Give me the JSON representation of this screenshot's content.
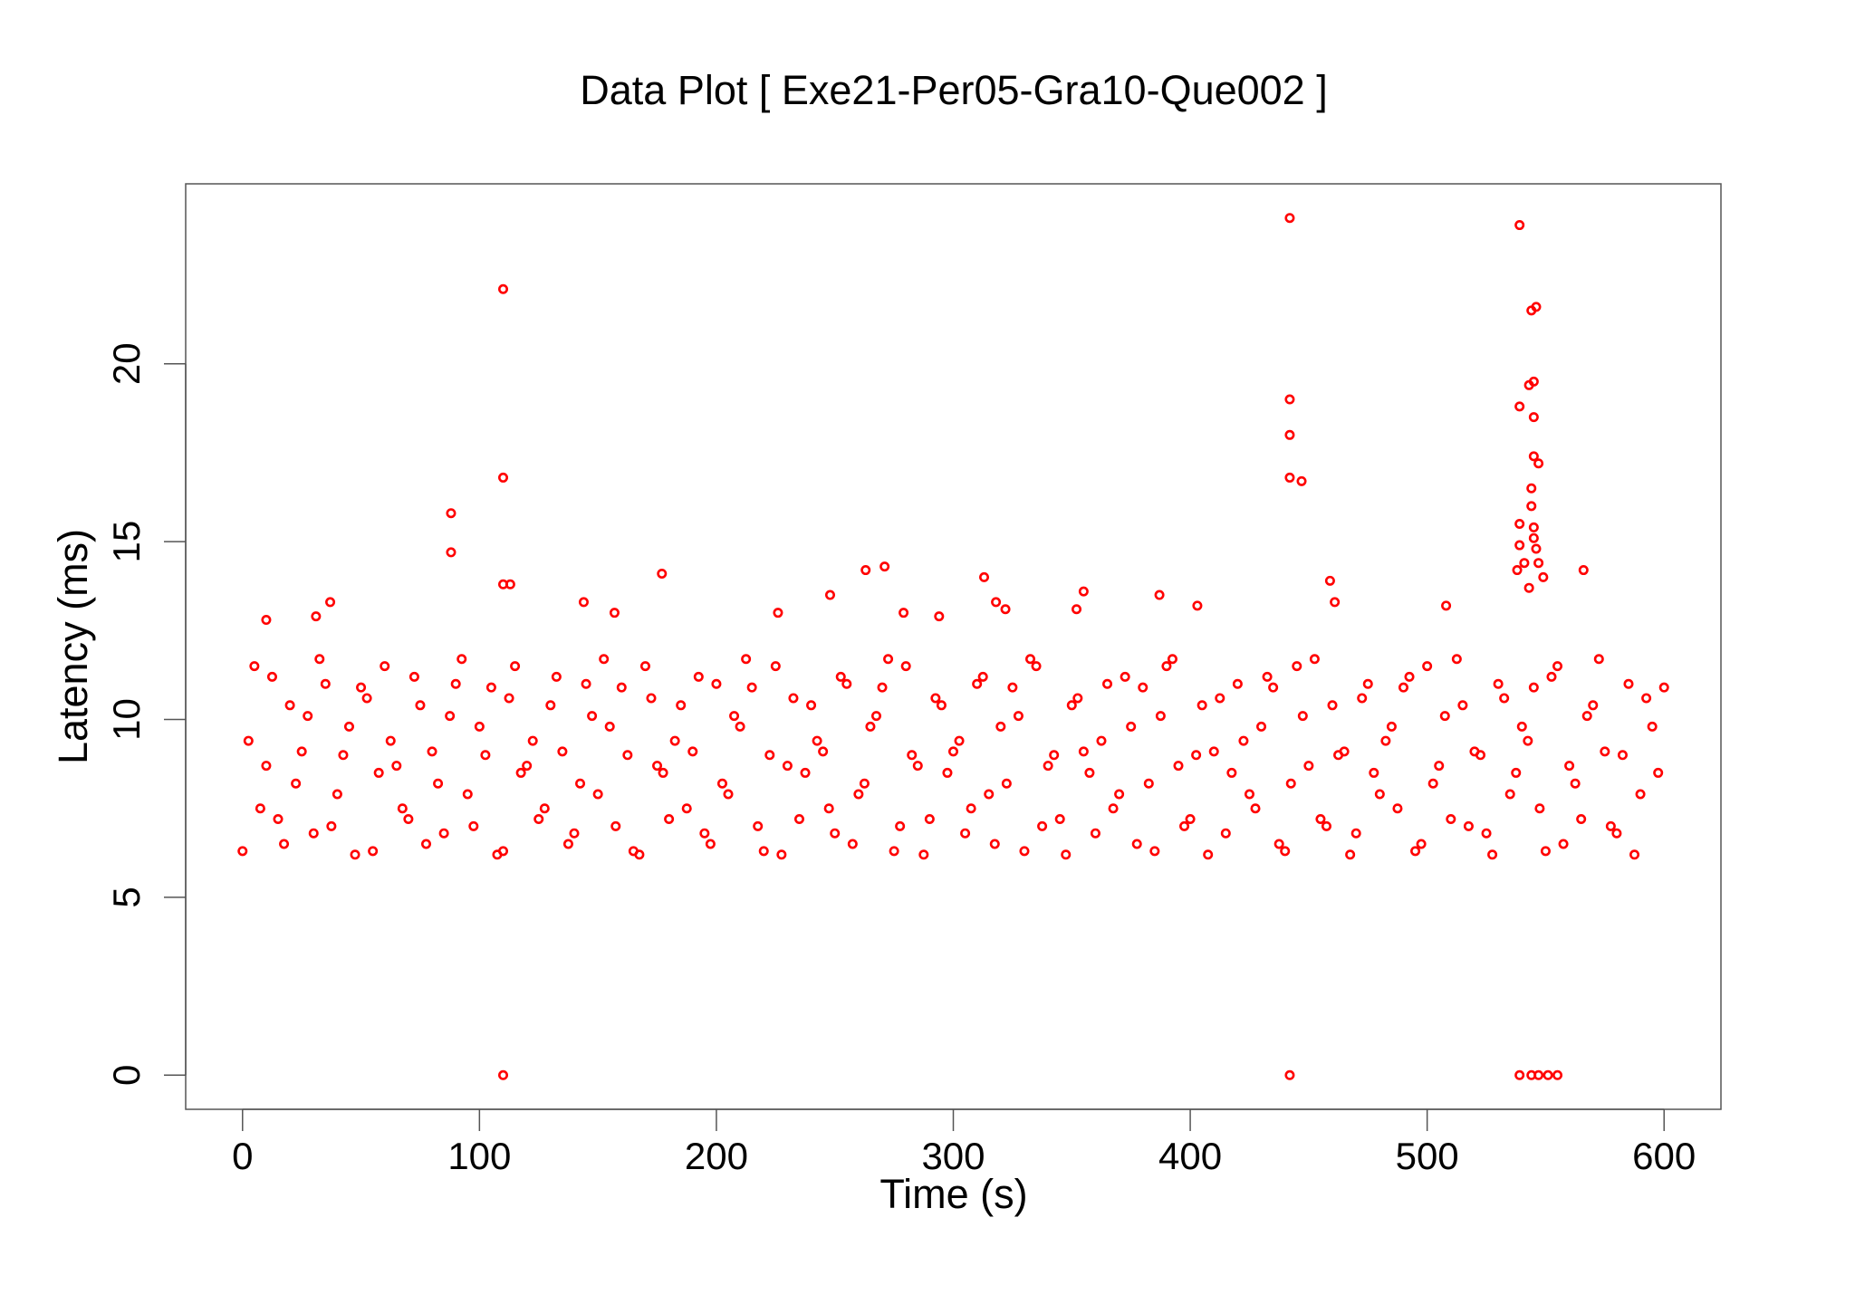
{
  "chart_data": {
    "type": "scatter",
    "title": "Data Plot [ Exe21-Per05-Gra10-Que002 ]",
    "x_label": "Time (s)",
    "y_label": "Latency (ms)",
    "color": "#ff0000",
    "xlim": [
      -24,
      624
    ],
    "ylim": [
      -0.96,
      25.06
    ],
    "xticks": [
      0,
      100,
      200,
      300,
      400,
      500,
      600
    ],
    "yticks": [
      0,
      5,
      10,
      15,
      20
    ],
    "x": [
      110,
      110,
      110,
      113,
      88,
      88,
      110,
      442,
      442,
      442,
      442,
      447,
      442,
      459,
      461,
      539,
      539,
      546,
      544,
      545,
      543,
      545,
      545,
      547,
      544,
      544,
      539,
      545,
      545,
      539,
      546,
      541,
      547,
      538,
      549,
      543,
      566,
      539,
      544,
      547,
      551,
      555,
      263,
      271,
      177,
      313,
      248,
      355,
      387,
      37,
      144,
      31,
      10,
      157,
      226,
      279,
      294,
      318,
      322,
      352,
      403,
      508,
      0,
      5,
      10,
      15,
      20,
      25,
      30,
      35,
      40,
      45,
      50,
      55,
      60,
      65,
      70,
      75,
      80,
      85,
      90,
      95,
      100,
      105,
      110,
      115,
      120,
      125,
      130,
      135,
      140,
      145,
      150,
      155,
      160,
      165,
      170,
      175,
      180,
      185,
      190,
      195,
      200,
      205,
      210,
      215,
      220,
      225,
      230,
      235,
      240,
      245,
      250,
      255,
      260,
      265,
      270,
      275,
      280,
      285,
      290,
      295,
      300,
      305,
      310,
      315,
      320,
      325,
      330,
      335,
      340,
      345,
      350,
      355,
      360,
      365,
      370,
      375,
      380,
      385,
      390,
      395,
      400,
      405,
      410,
      415,
      420,
      425,
      430,
      435,
      440,
      445,
      450,
      455,
      460,
      465,
      470,
      475,
      480,
      485,
      490,
      495,
      500,
      505,
      510,
      515,
      520,
      525,
      530,
      535,
      540,
      545,
      550,
      555,
      560,
      565,
      570,
      575,
      580,
      585,
      590,
      595,
      600,
      2.5,
      7.5,
      12.5,
      17.5,
      22.5,
      27.5,
      32.5,
      37.5,
      42.5,
      47.5,
      52.5,
      57.5,
      62.5,
      67.5,
      72.5,
      77.5,
      82.5,
      87.5,
      92.5,
      97.5,
      102.5,
      107.5,
      112.5,
      117.5,
      122.5,
      127.5,
      132.5,
      137.5,
      142.5,
      147.5,
      152.5,
      157.5,
      162.5,
      167.5,
      172.5,
      177.5,
      182.5,
      187.5,
      192.5,
      197.5,
      202.5,
      207.5,
      212.5,
      217.5,
      222.5,
      227.5,
      232.5,
      237.5,
      242.5,
      247.5,
      252.5,
      257.5,
      262.5,
      267.5,
      272.5,
      277.5,
      282.5,
      287.5,
      292.5,
      297.5,
      302.5,
      307.5,
      312.5,
      317.5,
      322.5,
      327.5,
      332.5,
      337.5,
      342.5,
      347.5,
      352.5,
      357.5,
      362.5,
      367.5,
      372.5,
      377.5,
      382.5,
      387.5,
      392.5,
      397.5,
      402.5,
      407.5,
      412.5,
      417.5,
      422.5,
      427.5,
      432.5,
      437.5,
      442.5,
      447.5,
      452.5,
      457.5,
      462.5,
      467.5,
      472.5,
      477.5,
      482.5,
      487.5,
      492.5,
      497.5,
      502.5,
      507.5,
      512.5,
      517.5,
      522.5,
      527.5,
      532.5,
      537.5,
      542.5,
      547.5,
      552.5,
      557.5,
      562.5,
      567.5,
      572.5,
      577.5,
      582.5,
      587.5,
      592.5,
      597.5
    ],
    "values": [
      22.1,
      16.8,
      13.8,
      13.8,
      15.8,
      14.7,
      0,
      24.1,
      19.0,
      18.0,
      16.8,
      16.7,
      0,
      13.9,
      13.3,
      23.9,
      18.8,
      21.6,
      21.5,
      19.5,
      19.4,
      18.5,
      17.4,
      17.2,
      16.5,
      16.0,
      15.5,
      15.4,
      15.1,
      14.9,
      14.8,
      14.4,
      14.4,
      14.2,
      14.0,
      13.7,
      14.2,
      0,
      0,
      0,
      0,
      0,
      14.2,
      14.3,
      14.1,
      14.0,
      13.5,
      13.6,
      13.5,
      13.3,
      13.3,
      12.9,
      12.8,
      13.0,
      13.0,
      13.0,
      12.9,
      13.3,
      13.1,
      13.1,
      13.2,
      13.2,
      6.3,
      11.5,
      8.7,
      7.2,
      10.4,
      9.1,
      6.8,
      11.0,
      7.9,
      9.8,
      10.9,
      6.3,
      11.5,
      8.7,
      7.2,
      10.4,
      9.1,
      6.8,
      11.0,
      7.9,
      9.8,
      10.9,
      6.3,
      11.5,
      8.7,
      7.2,
      10.4,
      9.1,
      6.8,
      11.0,
      7.9,
      9.8,
      10.9,
      6.3,
      11.5,
      8.7,
      7.2,
      10.4,
      9.1,
      6.8,
      11.0,
      7.9,
      9.8,
      10.9,
      6.3,
      11.5,
      8.7,
      7.2,
      10.4,
      9.1,
      6.8,
      11.0,
      7.9,
      9.8,
      10.9,
      6.3,
      11.5,
      8.7,
      7.2,
      10.4,
      9.1,
      6.8,
      11.0,
      7.9,
      9.8,
      10.9,
      6.3,
      11.5,
      8.7,
      7.2,
      10.4,
      9.1,
      6.8,
      11.0,
      7.9,
      9.8,
      10.9,
      6.3,
      11.5,
      8.7,
      7.2,
      10.4,
      9.1,
      6.8,
      11.0,
      7.9,
      9.8,
      10.9,
      6.3,
      11.5,
      8.7,
      7.2,
      10.4,
      9.1,
      6.8,
      11.0,
      7.9,
      9.8,
      10.9,
      6.3,
      11.5,
      8.7,
      7.2,
      10.4,
      9.1,
      6.8,
      11.0,
      7.9,
      9.8,
      10.9,
      6.3,
      11.5,
      8.7,
      7.2,
      10.4,
      9.1,
      6.8,
      11.0,
      7.9,
      9.8,
      10.9,
      9.4,
      7.5,
      11.2,
      6.5,
      8.2,
      10.1,
      11.7,
      7.0,
      9.0,
      6.2,
      10.6,
      8.5,
      9.4,
      7.5,
      11.2,
      6.5,
      8.2,
      10.1,
      11.7,
      7.0,
      9.0,
      6.2,
      10.6,
      8.5,
      9.4,
      7.5,
      11.2,
      6.5,
      8.2,
      10.1,
      11.7,
      7.0,
      9.0,
      6.2,
      10.6,
      8.5,
      9.4,
      7.5,
      11.2,
      6.5,
      8.2,
      10.1,
      11.7,
      7.0,
      9.0,
      6.2,
      10.6,
      8.5,
      9.4,
      7.5,
      11.2,
      6.5,
      8.2,
      10.1,
      11.7,
      7.0,
      9.0,
      6.2,
      10.6,
      8.5,
      9.4,
      7.5,
      11.2,
      6.5,
      8.2,
      10.1,
      11.7,
      7.0,
      9.0,
      6.2,
      10.6,
      8.5,
      9.4,
      7.5,
      11.2,
      6.5,
      8.2,
      10.1,
      11.7,
      7.0,
      9.0,
      6.2,
      10.6,
      8.5,
      9.4,
      7.5,
      11.2,
      6.5,
      8.2,
      10.1,
      11.7,
      7.0,
      9.0,
      6.2,
      10.6,
      8.5,
      9.4,
      7.5,
      11.2,
      6.5,
      8.2,
      10.1,
      11.7,
      7.0,
      9.0,
      6.2,
      10.6,
      8.5,
      9.4,
      7.5,
      11.2,
      6.5,
      8.2,
      10.1,
      11.7,
      7.0,
      9.0,
      6.2,
      10.6,
      8.5
    ]
  }
}
